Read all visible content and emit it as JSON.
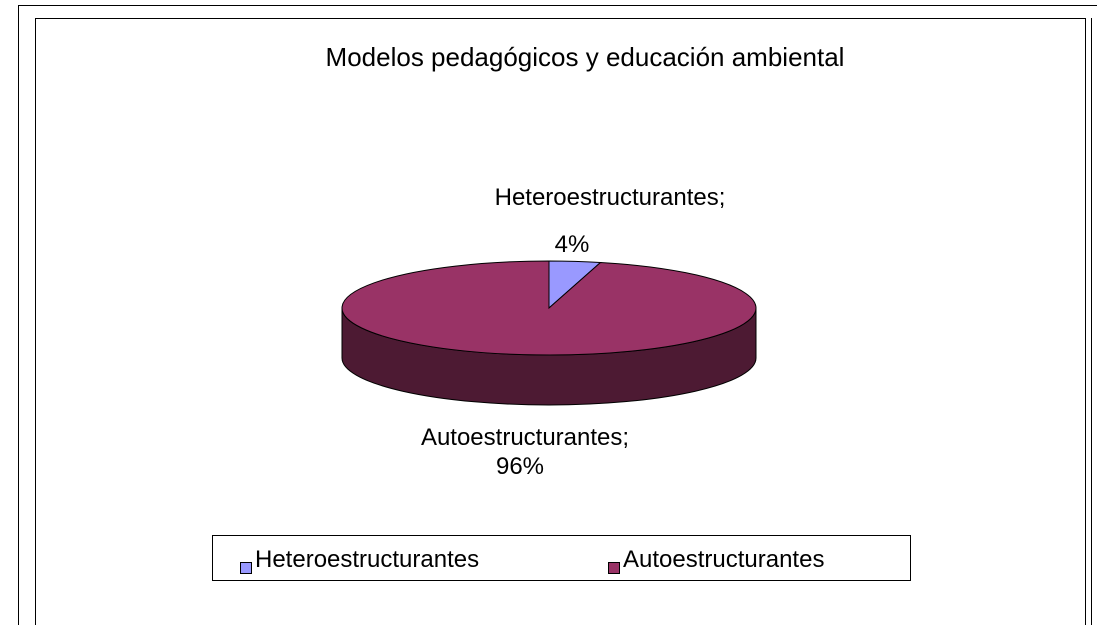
{
  "chart_data": {
    "type": "pie",
    "title": "Modelos pedagógicos y educación ambiental",
    "categories": [
      "Heteroestructurantes",
      "Autoestructurantes"
    ],
    "values": [
      4,
      96
    ],
    "value_labels": [
      "4%",
      "96%"
    ],
    "label_separator": ";",
    "colors": [
      "#9999ff",
      "#993366"
    ],
    "legend": "bottom"
  }
}
